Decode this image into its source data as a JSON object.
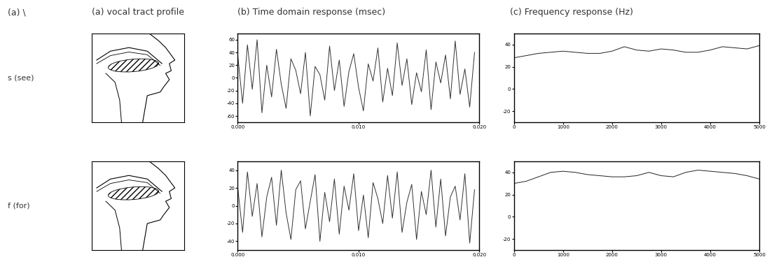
{
  "column_titles": [
    "(a) \\",
    "(a) vocal tract profile",
    "(b) Time domain response (msec)",
    "(c) Frequency response (Hz)"
  ],
  "row_labels": [
    "s (see)",
    "f (for)"
  ],
  "chart_data": [
    {
      "type": "line",
      "color": "#333333",
      "x": [
        0.0,
        0.0004,
        0.0008,
        0.0012,
        0.0016,
        0.002,
        0.0024,
        0.0028,
        0.0032,
        0.0036,
        0.004,
        0.0044,
        0.0048,
        0.0052,
        0.0056,
        0.006,
        0.0064,
        0.0068,
        0.0072,
        0.0076,
        0.008,
        0.0084,
        0.0088,
        0.0092,
        0.0096,
        0.01,
        0.0104,
        0.0108,
        0.0112,
        0.0116,
        0.012,
        0.0124,
        0.0128,
        0.0132,
        0.0136,
        0.014,
        0.0144,
        0.0148,
        0.0152,
        0.0156,
        0.016,
        0.0164,
        0.0168,
        0.0172,
        0.0176,
        0.018,
        0.0184,
        0.0188,
        0.0192,
        0.0196
      ],
      "values": [
        35,
        -40,
        52,
        -18,
        60,
        -55,
        20,
        -30,
        45,
        -10,
        -48,
        30,
        12,
        -25,
        40,
        -60,
        18,
        5,
        -35,
        50,
        -20,
        28,
        -45,
        10,
        38,
        -15,
        -52,
        22,
        -5,
        47,
        -38,
        15,
        -28,
        55,
        -12,
        30,
        -42,
        8,
        -22,
        44,
        -50,
        25,
        -8,
        36,
        -33,
        58,
        -26,
        14,
        -46,
        40
      ],
      "xlim": [
        0,
        0.02
      ],
      "xticks": [
        {
          "value": 0,
          "label": "0.000"
        },
        {
          "value": 0.01,
          "label": "0.010"
        },
        {
          "value": 0.02,
          "label": "0.020"
        }
      ],
      "ylim": [
        -70,
        70
      ],
      "yticks": [
        -60,
        -40,
        -20,
        0,
        20,
        40,
        60
      ]
    },
    {
      "type": "line",
      "color": "#222222",
      "x": [
        0,
        250,
        500,
        750,
        1000,
        1250,
        1500,
        1750,
        2000,
        2250,
        2500,
        2750,
        3000,
        3250,
        3500,
        3750,
        4000,
        4250,
        4500,
        4750,
        5000
      ],
      "values": [
        28,
        30,
        32,
        33,
        34,
        33,
        32,
        32,
        34,
        38,
        35,
        34,
        36,
        35,
        33,
        33,
        35,
        38,
        37,
        36,
        39
      ],
      "xlim": [
        0,
        5000
      ],
      "xticks": [
        0,
        1000,
        2000,
        3000,
        4000,
        5000
      ],
      "ylim": [
        -30,
        50
      ],
      "yticks": [
        -20,
        0,
        20,
        40
      ]
    },
    {
      "type": "line",
      "color": "#333333",
      "x": [
        0.0,
        0.0004,
        0.0008,
        0.0012,
        0.0016,
        0.002,
        0.0024,
        0.0028,
        0.0032,
        0.0036,
        0.004,
        0.0044,
        0.0048,
        0.0052,
        0.0056,
        0.006,
        0.0064,
        0.0068,
        0.0072,
        0.0076,
        0.008,
        0.0084,
        0.0088,
        0.0092,
        0.0096,
        0.01,
        0.0104,
        0.0108,
        0.0112,
        0.0116,
        0.012,
        0.0124,
        0.0128,
        0.0132,
        0.0136,
        0.014,
        0.0144,
        0.0148,
        0.0152,
        0.0156,
        0.016,
        0.0164,
        0.0168,
        0.0172,
        0.0176,
        0.018,
        0.0184,
        0.0188,
        0.0192,
        0.0196
      ],
      "values": [
        20,
        -30,
        38,
        -12,
        25,
        -35,
        10,
        32,
        -22,
        40,
        -8,
        -38,
        18,
        28,
        -26,
        5,
        35,
        -40,
        15,
        -18,
        30,
        -32,
        22,
        -5,
        36,
        -28,
        12,
        -36,
        26,
        8,
        -20,
        34,
        -14,
        38,
        -30,
        4,
        24,
        -38,
        16,
        -10,
        40,
        -24,
        30,
        -34,
        10,
        22,
        -16,
        36,
        -42,
        18
      ],
      "xlim": [
        0,
        0.02
      ],
      "xticks": [
        {
          "value": 0,
          "label": "0.000"
        },
        {
          "value": 0.01,
          "label": "0.010"
        },
        {
          "value": 0.02,
          "label": "0.020"
        }
      ],
      "ylim": [
        -50,
        50
      ],
      "yticks": [
        -40,
        -20,
        0,
        20,
        40
      ]
    },
    {
      "type": "line",
      "color": "#222222",
      "x": [
        0,
        250,
        500,
        750,
        1000,
        1250,
        1500,
        1750,
        2000,
        2250,
        2500,
        2750,
        3000,
        3250,
        3500,
        3750,
        4000,
        4250,
        4500,
        4750,
        5000
      ],
      "values": [
        30,
        32,
        36,
        40,
        41,
        40,
        38,
        37,
        36,
        36,
        37,
        40,
        37,
        36,
        40,
        42,
        41,
        40,
        39,
        37,
        34
      ],
      "xlim": [
        0,
        5000
      ],
      "xticks": [
        0,
        1000,
        2000,
        3000,
        4000,
        5000
      ],
      "ylim": [
        -30,
        50
      ],
      "yticks": [
        -20,
        0,
        20,
        40
      ]
    }
  ]
}
